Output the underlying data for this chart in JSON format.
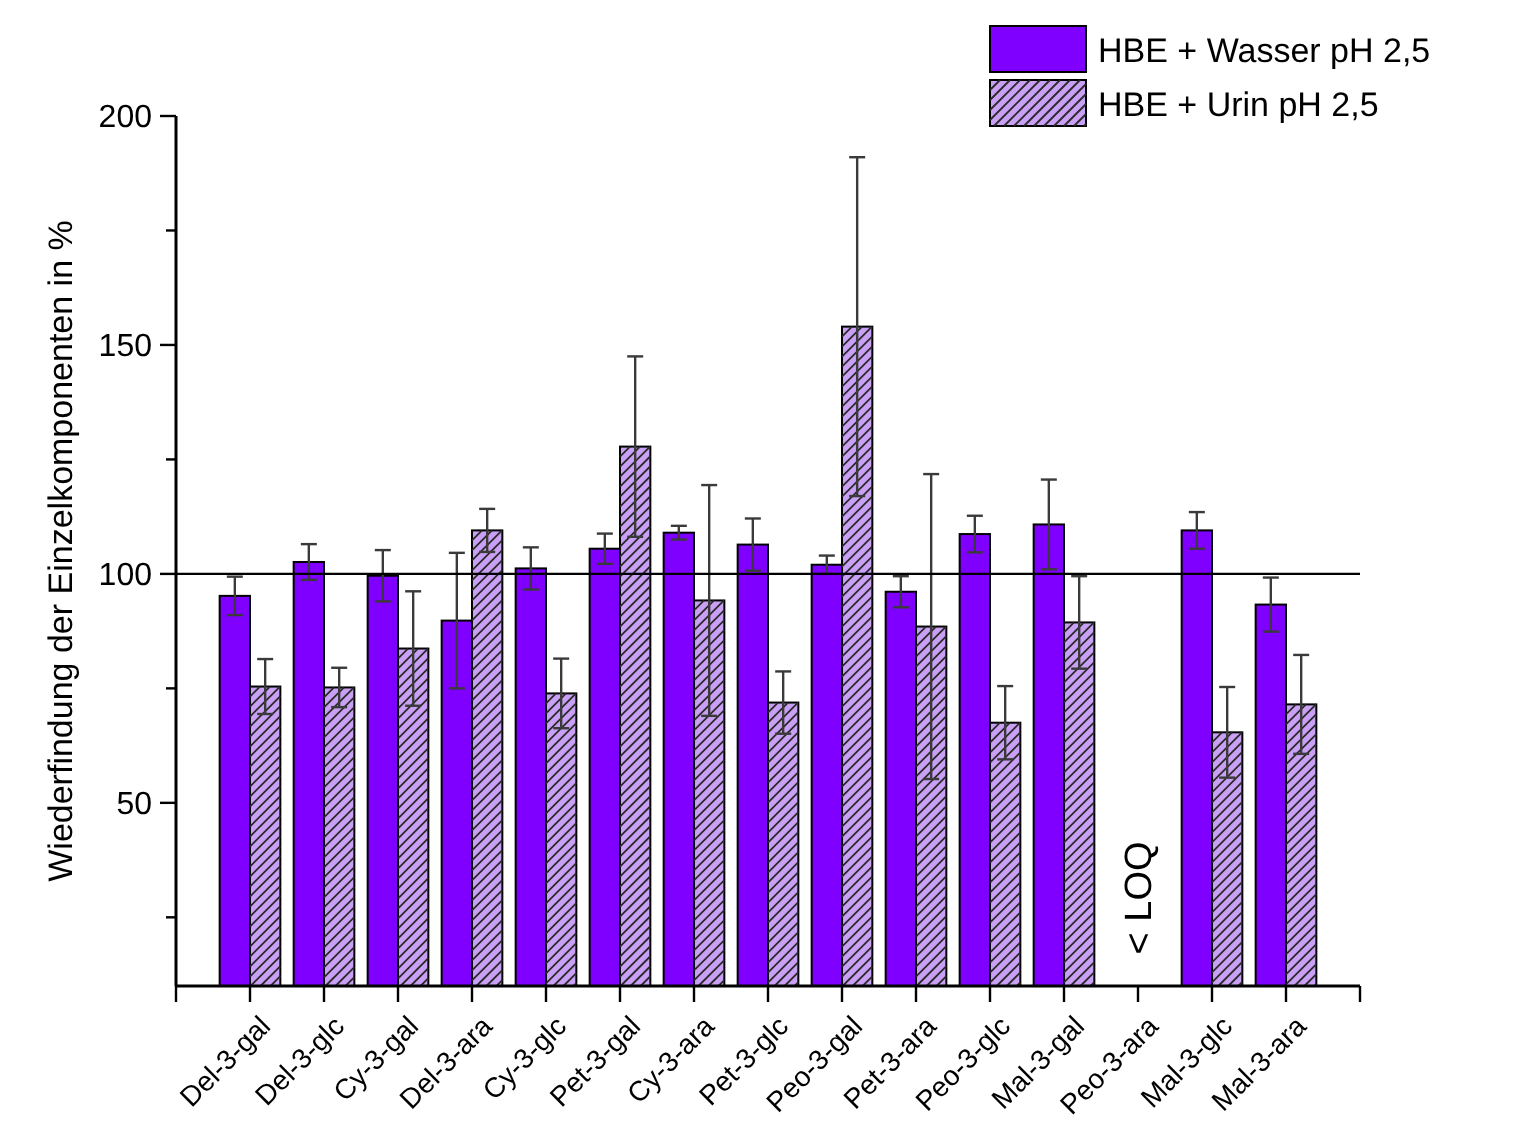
{
  "chart_data": {
    "type": "bar",
    "ylabel": "Wiederfindung der Einzelkomponenten in %",
    "categories": [
      "Del-3-gal",
      "Del-3-glc",
      "Cy-3-gal",
      "Del-3-ara",
      "Cy-3-glc",
      "Pet-3-gal",
      "Cy-3-ara",
      "Pet-3-glc",
      "Peo-3-gal",
      "Pet-3-ara",
      "Peo-3-glc",
      "Mal-3-gal",
      "Peo-3-ara",
      "Mal-3-glc",
      "Mal-3-ara"
    ],
    "series": [
      {
        "name": "HBE + Wasser pH 2,5",
        "color": "#7f00ff",
        "values": [
          95.2,
          102.6,
          99.6,
          89.8,
          101.2,
          105.5,
          109,
          106.4,
          102,
          96.1,
          108.7,
          110.8,
          null,
          109.5,
          93.3
        ],
        "errors": [
          4.2,
          3.9,
          5.6,
          14.8,
          4.6,
          3.3,
          1.5,
          5.7,
          2,
          3.4,
          4,
          9.8,
          null,
          4,
          5.9
        ]
      },
      {
        "name": "HBE + Urin pH 2,5",
        "color": "#c9a0f5",
        "values": [
          75.4,
          75.2,
          83.7,
          109.5,
          73.9,
          127.8,
          94.2,
          71.9,
          154,
          88.5,
          67.5,
          89.4,
          null,
          65.4,
          71.5
        ],
        "errors": [
          6,
          4.3,
          12.5,
          4.7,
          7.6,
          19.7,
          25.2,
          6.8,
          37,
          33.3,
          8,
          10.1,
          null,
          9.9,
          10.8
        ]
      }
    ],
    "ylim": [
      10,
      200
    ],
    "yticks": [
      {
        "value": 25,
        "label": null
      },
      50,
      {
        "value": 75,
        "label": null
      },
      100,
      {
        "value": 125,
        "label": null
      },
      150,
      {
        "value": 175,
        "label": null
      },
      200
    ],
    "ref_lines": [
      {
        "axis": "y",
        "value": 100,
        "color": "#000000"
      }
    ],
    "annotations": [
      "< LOQ"
    ],
    "legend": "top right",
    "grid": false
  }
}
